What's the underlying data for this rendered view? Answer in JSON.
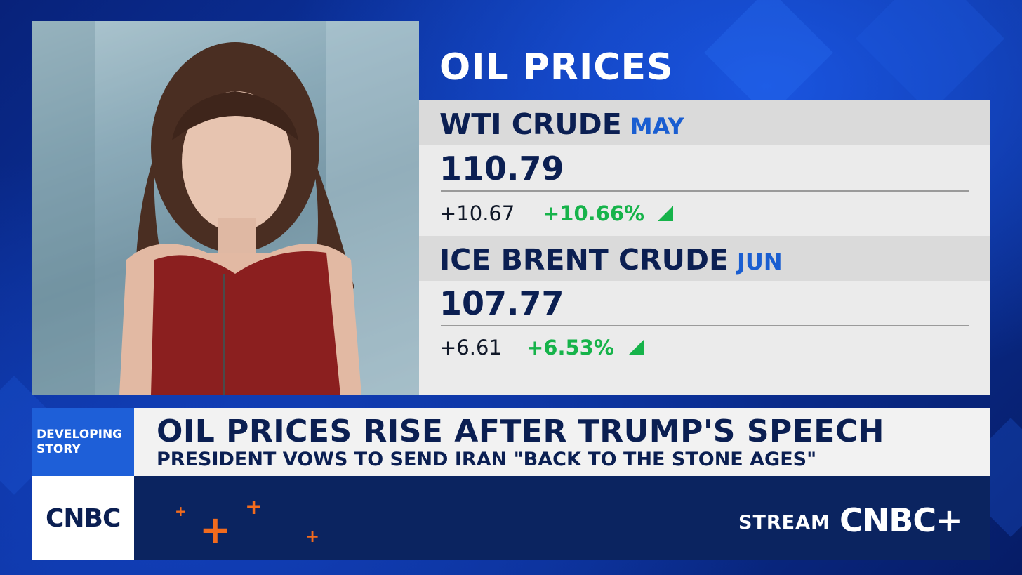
{
  "panel": {
    "title": "OIL PRICES",
    "quotes": [
      {
        "name": "WTI CRUDE",
        "month": "MAY",
        "price": "110.79",
        "change": "+10.67",
        "percent": "+10.66%",
        "direction": "up"
      },
      {
        "name": "ICE BRENT CRUDE",
        "month": "JUN",
        "price": "107.77",
        "change": "+6.61",
        "percent": "+6.53%",
        "direction": "up"
      }
    ]
  },
  "lower_third": {
    "label_line1": "DEVELOPING",
    "label_line2": "STORY",
    "headline": "OIL PRICES RISE AFTER TRUMP'S SPEECH",
    "subhead": "PRESIDENT VOWS TO SEND IRAN \"BACK TO THE STONE AGES\""
  },
  "branding": {
    "logo": "CNBC",
    "stream_label": "STREAM",
    "stream_logo": "CNBC+"
  },
  "colors": {
    "navy": "#0b1f52",
    "accent_blue": "#1e5fd8",
    "gain_green": "#16b34a",
    "orange": "#f26b1d"
  }
}
